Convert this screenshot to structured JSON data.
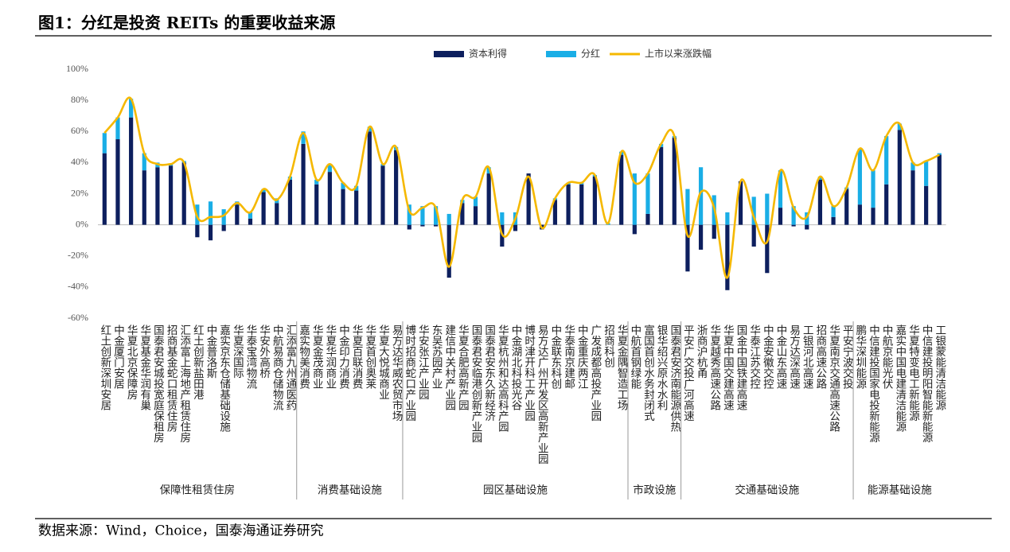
{
  "chart_data": {
    "type": "bar",
    "title": "图1：分红是投资 REITs 的重要收益来源",
    "source": "数据来源：Wind，Choice，国泰海通证券研究",
    "groups": [
      {
        "name": "保障性租赁住房",
        "categories": [
          "红土创新深圳安居",
          "中金厦门安居",
          "华夏北京保障房",
          "华夏基金华润有巢",
          "国泰君安城投宽庭保租房",
          "招商基金蛇口租赁住房",
          "汇添富上海地产租赁住房",
          "红土创新盐田港",
          "中金普洛斯",
          "嘉实京东仓储基础设施",
          "华夏深国际",
          "华泰宝湾物流",
          "华安外高桥",
          "中航易商仓储物流",
          "汇添富九州通医药"
        ]
      },
      {
        "name": "消费基础设施",
        "categories": [
          "嘉实物美消费",
          "华夏金茂商业",
          "华夏华润商业",
          "中金印力消费",
          "华夏百联消费",
          "华夏首创奥莱",
          "华夏大悦城商业",
          "易方达华威农贸市场"
        ]
      },
      {
        "name": "园区基础设施",
        "categories": [
          "博时招商蛇口产业园",
          "华安张江产业园",
          "东吴苏园产业",
          "建信中关村产业园",
          "华夏合肥高新产园",
          "国泰君安临港创新产业园",
          "国泰君安东久新经济",
          "华夏杭州和达高科产园",
          "中金湖北科投光谷",
          "博时津开科工产业园",
          "易方达广州开发区高新产业园",
          "中金联东科创",
          "华泰南京建邮",
          "中金重庆两江",
          "广发成都高投产业园",
          "招商科创",
          "华夏金隅智造工场"
        ]
      },
      {
        "name": "市政设施",
        "categories": [
          "中航首钢绿能",
          "富国首创水务封闭式",
          "银华绍兴原水水利",
          "国泰君安济南能源供热"
        ]
      },
      {
        "name": "交通基础设施",
        "categories": [
          "平安广交投广河高速",
          "浙商沪杭甬",
          "华夏越秀高速公路",
          "华夏中国交建高速",
          "国金中国铁建高速",
          "华泰江苏交控",
          "中金安徽交控",
          "中金山东高速",
          "易方达深高速",
          "工银河北高速",
          "招商高速公路",
          "华夏南京交通高速公路",
          "平安宁波交投"
        ]
      },
      {
        "name": "能源基础设施",
        "categories": [
          "鹏华深圳能源",
          "中信建投国家电投新能源",
          "中航京能光伏",
          "嘉实中国电建清洁能源",
          "华夏特变电工新能源",
          "中信建投明阳智能新能源",
          "工银蒙能清洁能源"
        ]
      }
    ],
    "series": [
      {
        "name": "资本利得",
        "type": "bar",
        "color": "#0d1f5e",
        "values": [
          46,
          55,
          69,
          35,
          37,
          38,
          40,
          -8,
          -10,
          -4,
          13,
          4,
          21,
          14,
          29,
          52,
          26,
          34,
          23,
          22,
          60,
          38,
          48,
          -3,
          -1,
          -1,
          -34,
          14,
          12,
          33,
          -14,
          -4,
          33,
          -3,
          16,
          26,
          26,
          31,
          0,
          45,
          -6,
          7,
          50,
          56,
          -30,
          -16,
          -9,
          -42,
          28,
          -14,
          -31,
          11,
          -1,
          -3,
          29,
          5,
          23,
          13,
          11,
          26,
          61,
          35,
          25,
          45
        ]
      },
      {
        "name": "分红",
        "type": "bar",
        "color": "#1aaee6",
        "values": [
          13,
          14,
          12,
          11,
          3,
          1,
          1,
          13,
          15,
          10,
          2,
          4,
          2,
          3,
          2,
          8,
          3,
          5,
          4,
          3,
          3,
          1,
          2,
          13,
          12,
          12,
          7,
          2,
          6,
          4,
          8,
          8,
          0,
          0,
          1,
          1,
          1,
          1,
          1,
          2,
          33,
          26,
          2,
          1,
          23,
          37,
          19,
          8,
          0,
          18,
          20,
          24,
          12,
          8,
          2,
          7,
          1,
          36,
          24,
          31,
          4,
          5,
          16,
          1
        ]
      },
      {
        "name": "上市以来涨跌幅",
        "type": "line",
        "color": "#f5b800",
        "values": [
          59,
          69,
          81,
          46,
          39,
          39,
          40,
          5,
          5,
          6,
          14,
          8,
          23,
          16,
          31,
          59,
          29,
          39,
          27,
          25,
          63,
          39,
          50,
          9,
          11,
          11,
          -27,
          16,
          18,
          37,
          -6,
          4,
          31,
          -2,
          17,
          27,
          27,
          32,
          1,
          47,
          27,
          33,
          52,
          57,
          -7,
          21,
          11,
          -34,
          28,
          5,
          -11,
          35,
          11,
          5,
          31,
          12,
          24,
          49,
          35,
          57,
          65,
          40,
          41,
          45
        ]
      }
    ],
    "ylim": [
      -60,
      100
    ],
    "yticks": [
      {
        "value": -60,
        "label": "-60%"
      },
      {
        "value": -40,
        "label": "-40%"
      },
      {
        "value": -20,
        "label": "-20%"
      },
      {
        "value": 0,
        "label": "0%"
      },
      {
        "value": 20,
        "label": "20%"
      },
      {
        "value": 40,
        "label": "40%"
      },
      {
        "value": 60,
        "label": "60%"
      },
      {
        "value": 80,
        "label": "80%"
      },
      {
        "value": 100,
        "label": "100%"
      }
    ],
    "legend": "top"
  }
}
